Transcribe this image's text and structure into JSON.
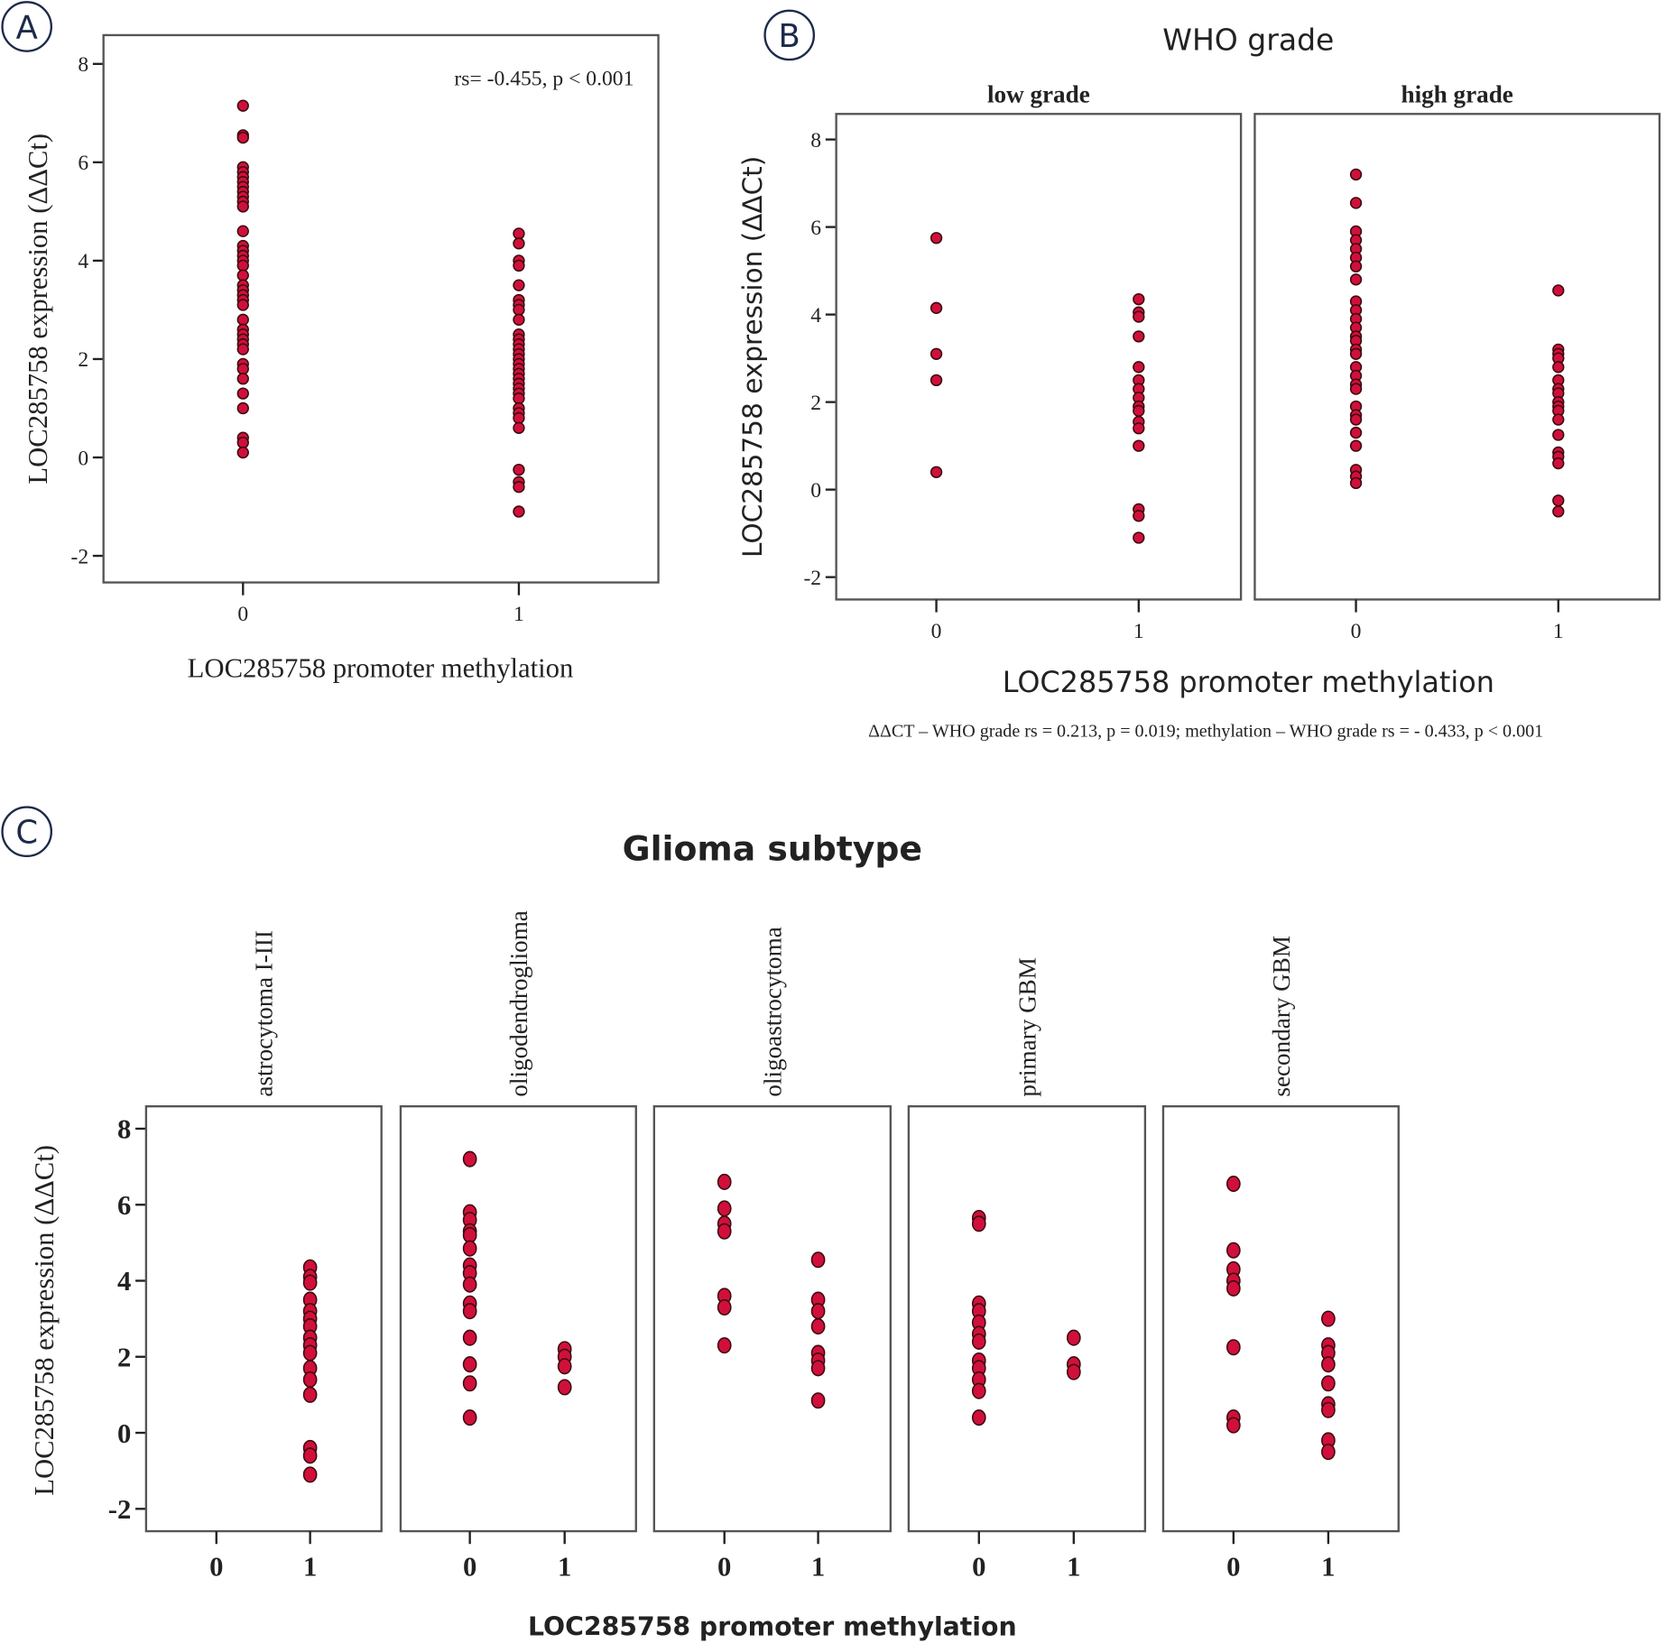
{
  "chart_data": [
    {
      "panel": "A",
      "type": "scatter",
      "xlabel": "LOC285758 promoter methylation",
      "ylabel": "LOC285758 expression (ΔΔCt)",
      "annotation": "rs= -0.455, p < 0.001",
      "xticks": [
        "0",
        "1"
      ],
      "yticks": [
        8,
        6,
        4,
        2,
        0,
        -2
      ],
      "ylim": [
        -2.5,
        8.6
      ],
      "grid": false,
      "series": [
        {
          "x": 0,
          "y": [
            7.15,
            6.55,
            6.5,
            5.9,
            5.8,
            5.7,
            5.6,
            5.5,
            5.4,
            5.3,
            5.2,
            5.1,
            4.6,
            4.3,
            4.2,
            4.1,
            4.0,
            3.9,
            3.7,
            3.5,
            3.4,
            3.3,
            3.2,
            3.1,
            2.8,
            2.6,
            2.5,
            2.4,
            2.3,
            2.2,
            1.9,
            1.8,
            1.6,
            1.3,
            1.0,
            0.4,
            0.3,
            0.1
          ]
        },
        {
          "x": 1,
          "y": [
            4.55,
            4.35,
            4.0,
            3.9,
            3.5,
            3.2,
            3.1,
            3.0,
            2.8,
            2.5,
            2.4,
            2.3,
            2.2,
            2.1,
            2.0,
            1.9,
            1.8,
            1.7,
            1.6,
            1.5,
            1.4,
            1.3,
            1.2,
            1.0,
            0.9,
            0.8,
            0.6,
            -0.25,
            -0.5,
            -0.6,
            -1.1
          ]
        }
      ]
    },
    {
      "panel": "B",
      "type": "scatter",
      "title": "WHO grade",
      "xlabel": "LOC285758 promoter methylation",
      "ylabel": "LOC285758 expression (ΔΔCt)",
      "footnote": "ΔΔCT – WHO grade  rs = 0.213, p = 0.019;  methylation – WHO grade  rs = - 0.433, p < 0.001",
      "xticks": [
        "0",
        "1"
      ],
      "yticks": [
        8,
        6,
        4,
        2,
        0,
        -2
      ],
      "ylim": [
        -2.5,
        8.6
      ],
      "grid": false,
      "facets": [
        {
          "label": "low grade",
          "series": [
            {
              "x": 0,
              "y": [
                5.75,
                4.15,
                3.1,
                2.5,
                0.4
              ]
            },
            {
              "x": 1,
              "y": [
                4.35,
                4.05,
                3.95,
                3.5,
                2.8,
                2.5,
                2.3,
                2.1,
                1.9,
                1.8,
                1.55,
                1.4,
                1.0,
                -0.45,
                -0.6,
                -1.1
              ]
            }
          ]
        },
        {
          "label": "high grade",
          "series": [
            {
              "x": 0,
              "y": [
                7.2,
                6.55,
                5.9,
                5.7,
                5.5,
                5.3,
                5.1,
                4.8,
                4.3,
                4.1,
                3.9,
                3.7,
                3.5,
                3.4,
                3.2,
                3.1,
                2.8,
                2.6,
                2.4,
                2.3,
                1.9,
                1.7,
                1.6,
                1.3,
                1.0,
                0.45,
                0.3,
                0.15
              ]
            },
            {
              "x": 1,
              "y": [
                4.55,
                3.2,
                3.1,
                3.0,
                2.8,
                2.5,
                2.3,
                2.2,
                2.0,
                1.9,
                1.8,
                1.6,
                1.25,
                0.85,
                0.75,
                0.6,
                -0.25,
                -0.5
              ]
            }
          ]
        }
      ]
    },
    {
      "panel": "C",
      "type": "scatter",
      "title": "Glioma subtype",
      "xlabel": "LOC285758 promoter methylation",
      "ylabel": "LOC285758 expression (ΔΔCt)",
      "xticks": [
        "0",
        "1"
      ],
      "yticks": [
        8,
        6,
        4,
        2,
        0,
        -2
      ],
      "ylim": [
        -2.6,
        8.6
      ],
      "grid": false,
      "facets": [
        {
          "label": "astrocytoma I-III",
          "series": [
            {
              "x": 0,
              "y": []
            },
            {
              "x": 1,
              "y": [
                4.35,
                4.1,
                3.95,
                3.5,
                3.2,
                3.0,
                2.8,
                2.5,
                2.3,
                2.1,
                1.7,
                1.4,
                1.0,
                -0.4,
                -0.6,
                -1.1
              ]
            }
          ]
        },
        {
          "label": "oligodendroglioma",
          "series": [
            {
              "x": 0,
              "y": [
                7.2,
                5.8,
                5.6,
                5.3,
                5.2,
                4.85,
                4.4,
                4.2,
                3.9,
                3.4,
                3.2,
                2.5,
                1.8,
                1.3,
                0.4
              ]
            },
            {
              "x": 1,
              "y": [
                2.2,
                2.0,
                1.75,
                1.2
              ]
            }
          ]
        },
        {
          "label": "oligoastrocytoma",
          "series": [
            {
              "x": 0,
              "y": [
                6.6,
                5.9,
                5.5,
                5.3,
                3.6,
                3.3,
                2.3
              ]
            },
            {
              "x": 1,
              "y": [
                4.55,
                3.5,
                3.2,
                2.8,
                2.1,
                1.9,
                1.7,
                0.85
              ]
            }
          ]
        },
        {
          "label": "primary GBM",
          "series": [
            {
              "x": 0,
              "y": [
                5.65,
                5.5,
                3.4,
                3.2,
                2.9,
                2.6,
                2.4,
                1.9,
                1.7,
                1.4,
                1.1,
                0.4
              ]
            },
            {
              "x": 1,
              "y": [
                2.5,
                1.8,
                1.6
              ]
            }
          ]
        },
        {
          "label": "secondary GBM",
          "series": [
            {
              "x": 0,
              "y": [
                6.55,
                4.8,
                4.3,
                4.0,
                3.8,
                2.25,
                0.4,
                0.2
              ]
            },
            {
              "x": 1,
              "y": [
                3.0,
                2.3,
                2.1,
                1.8,
                1.3,
                0.75,
                0.6,
                -0.2,
                -0.5
              ]
            }
          ]
        }
      ]
    }
  ],
  "colors": {
    "point_fill": "#d0103a",
    "point_edge": "#3a0a10",
    "badge": "#1d2a4a"
  }
}
